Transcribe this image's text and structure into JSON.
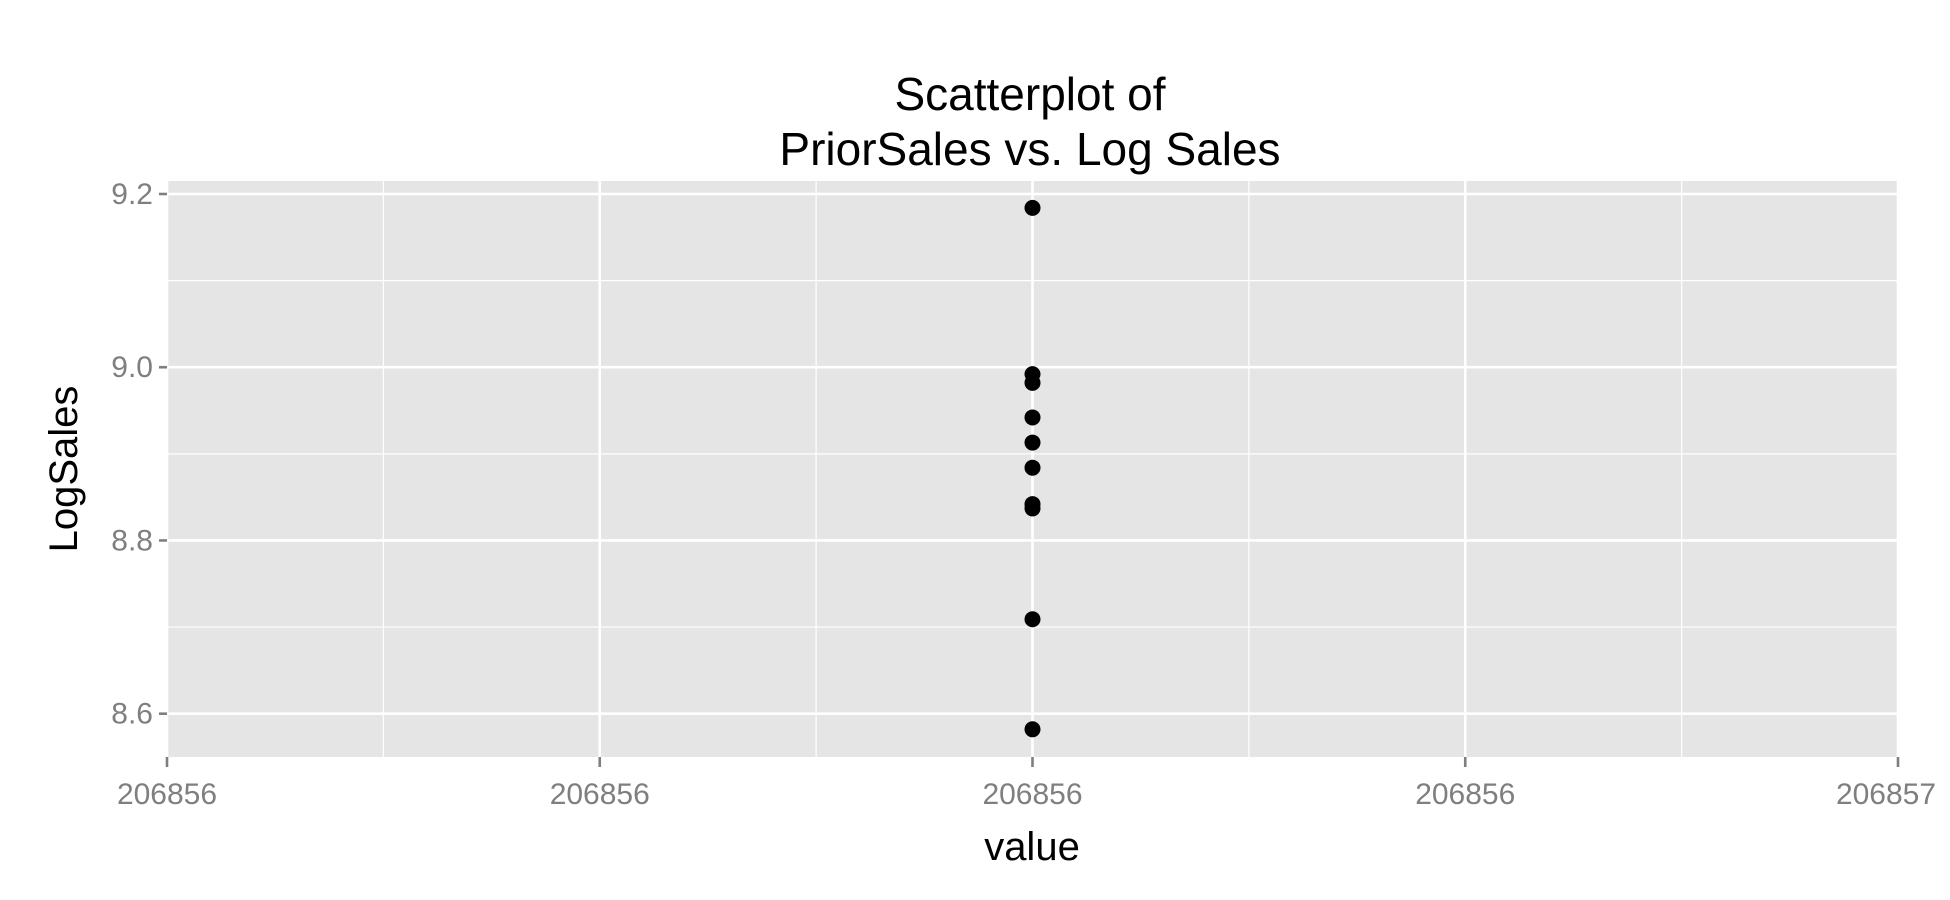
{
  "chart_data": {
    "type": "scatter",
    "title_lines": [
      "Scatterplot of",
      "PriorSales vs. Log Sales"
    ],
    "xlabel": "value",
    "ylabel": "LogSales",
    "x_tick_labels": [
      "206856",
      "206856",
      "206856",
      "206856",
      "206857"
    ],
    "xlim": [
      0,
      1
    ],
    "y_ticks": [
      8.6,
      8.8,
      9.0,
      9.2
    ],
    "y_tick_labels": [
      "8.6",
      "8.8",
      "9.0",
      "9.2"
    ],
    "ylim": [
      8.55,
      9.215
    ],
    "grid": true,
    "legend": "none",
    "colors": {
      "panel": "#e5e5e5",
      "grid": "#ffffff",
      "point": "#000000",
      "tick": "#7f7f7f"
    },
    "points": [
      {
        "x": 0.5,
        "y": 9.184
      },
      {
        "x": 0.5,
        "y": 8.992
      },
      {
        "x": 0.5,
        "y": 8.982
      },
      {
        "x": 0.5,
        "y": 8.942
      },
      {
        "x": 0.5,
        "y": 8.913
      },
      {
        "x": 0.5,
        "y": 8.884
      },
      {
        "x": 0.5,
        "y": 8.842
      },
      {
        "x": 0.5,
        "y": 8.837
      },
      {
        "x": 0.5,
        "y": 8.709
      },
      {
        "x": 0.5,
        "y": 8.582
      }
    ]
  }
}
